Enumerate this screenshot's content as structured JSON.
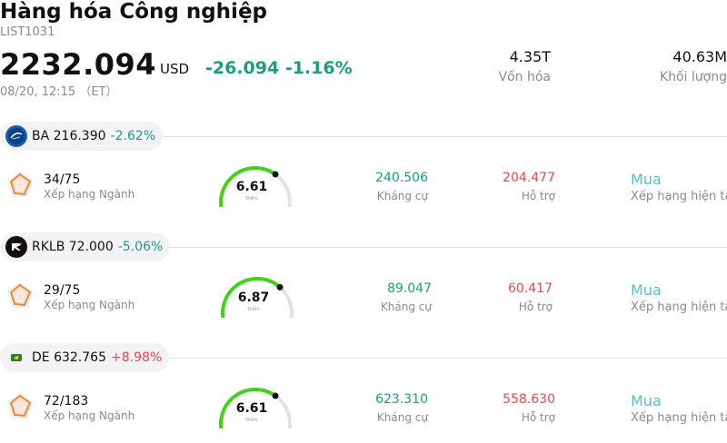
{
  "header": {
    "title": "Hàng hóa Công nghiệp",
    "code": "LIST1031",
    "price": "2232.094",
    "currency": "USD",
    "change": "-26.094 -1.16%",
    "time": "08/20, 12:15 （ET）"
  },
  "stats": {
    "market_cap_value": "4.35T",
    "market_cap_label": "Vốn hóa",
    "volume_value": "40.63M",
    "volume_label": "Khối lượng"
  },
  "colors": {
    "negative_change": "#1a9e7e",
    "positive_change": "#e5484d",
    "gauge_fill": "#44d11a",
    "rating": "#4fc4c4"
  },
  "stocks": [
    {
      "ticker": "BA 216.390",
      "change": "-2.62%",
      "direction": "down",
      "logo_icon": "boeing-logo-icon",
      "industry_rank": "34/75",
      "industry_rank_label": "Xếp hạng Ngành",
      "score": "6.61",
      "score_label": "Điểm",
      "score_fraction": 0.661,
      "resistance": "240.506",
      "resistance_label": "Kháng cự",
      "support": "204.477",
      "support_label": "Hỗ trợ",
      "rating": "Mua",
      "rating_label": "Xếp hạng hiện tại"
    },
    {
      "ticker": "RKLB 72.000",
      "change": "-5.06%",
      "direction": "down",
      "logo_icon": "rocket-lab-logo-icon",
      "industry_rank": "29/75",
      "industry_rank_label": "Xếp hạng Ngành",
      "score": "6.87",
      "score_label": "Điểm",
      "score_fraction": 0.687,
      "resistance": "89.047",
      "resistance_label": "Kháng cự",
      "support": "60.417",
      "support_label": "Hỗ trợ",
      "rating": "Mua",
      "rating_label": "Xếp hạng hiện tại"
    },
    {
      "ticker": "DE 632.765",
      "change": "+8.98%",
      "direction": "up",
      "logo_icon": "john-deere-logo-icon",
      "industry_rank": "72/183",
      "industry_rank_label": "Xếp hạng Ngành",
      "score": "6.61",
      "score_label": "Điểm",
      "score_fraction": 0.661,
      "resistance": "623.310",
      "resistance_label": "Kháng cự",
      "support": "558.630",
      "support_label": "Hỗ trợ",
      "rating": "Mua",
      "rating_label": "Xếp hạng hiện tại"
    }
  ]
}
